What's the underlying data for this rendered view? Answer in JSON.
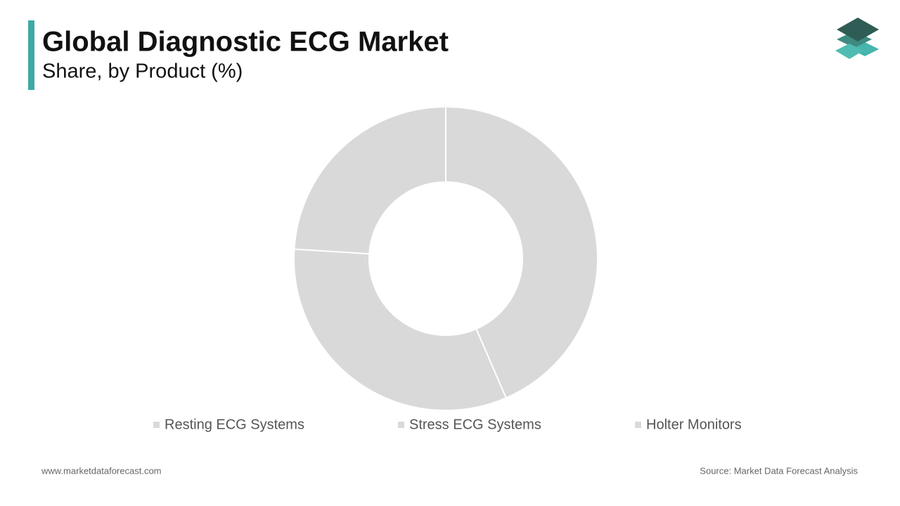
{
  "chart_data": {
    "type": "donut",
    "title": "Global Diagnostic ECG Market",
    "subtitle": "Share, by Product (%)",
    "categories": [
      "Resting ECG Systems",
      "Stress ECG Systems",
      "Holter Monitors"
    ],
    "values": [
      43.5,
      32.5,
      24
    ],
    "colors": [
      "#d9d9d9",
      "#d9d9d9",
      "#d9d9d9"
    ]
  },
  "footer": {
    "website": "www.marketdataforecast.com",
    "source": "Source: Market Data Forecast Analysis"
  }
}
